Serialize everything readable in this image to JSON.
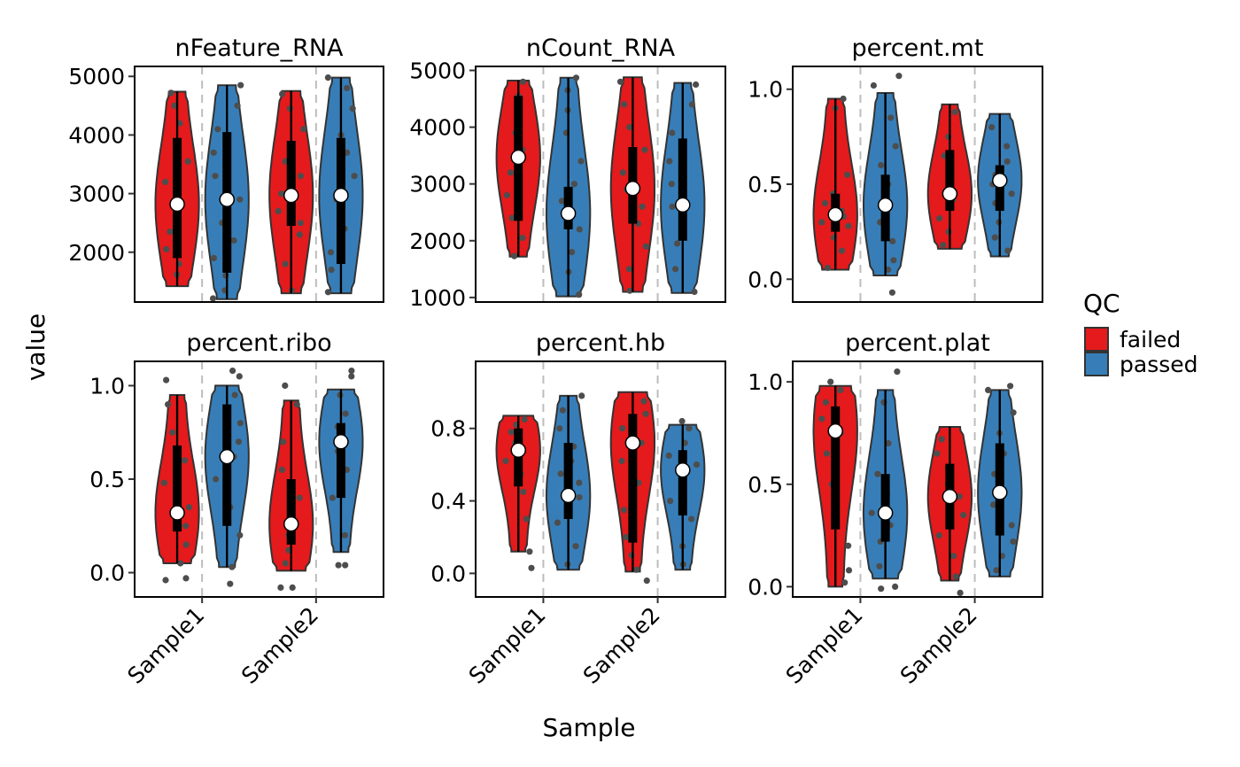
{
  "chart_data": {
    "type": "violin",
    "xlabel": "Sample",
    "ylabel": "value",
    "categories": [
      "Sample1",
      "Sample2"
    ],
    "legend": {
      "title": "QC",
      "position": "right",
      "entries": [
        {
          "name": "failed",
          "color": "#e41a1c"
        },
        {
          "name": "passed",
          "color": "#377eb8"
        }
      ]
    },
    "grid": false,
    "panels": [
      {
        "title": "nFeature_RNA",
        "ylim": [
          1150,
          5170
        ],
        "yticks": [
          2000,
          3000,
          4000,
          5000
        ],
        "groups": [
          {
            "sample": "Sample1",
            "qc": "failed",
            "min": 1420,
            "max": 4740,
            "q1": 1900,
            "q3": 3950,
            "median": 2820,
            "points": [
              1620,
              1800,
              2050,
              2350,
              2600,
              2800,
              3200,
              3550,
              4200,
              4500,
              4720
            ]
          },
          {
            "sample": "Sample1",
            "qc": "passed",
            "min": 1200,
            "max": 4850,
            "q1": 1650,
            "q3": 4050,
            "median": 2900,
            "points": [
              1210,
              1350,
              1600,
              1900,
              2200,
              2500,
              2900,
              3300,
              3700,
              4100,
              4500,
              4850
            ]
          },
          {
            "sample": "Sample2",
            "qc": "failed",
            "min": 1300,
            "max": 4750,
            "q1": 2450,
            "q3": 3900,
            "median": 2970,
            "points": [
              1350,
              1800,
              2300,
              2500,
              2700,
              3000,
              3300,
              3550,
              3800,
              4100,
              4450,
              4700
            ]
          },
          {
            "sample": "Sample2",
            "qc": "passed",
            "min": 1300,
            "max": 4980,
            "q1": 1800,
            "q3": 3950,
            "median": 2970,
            "points": [
              1320,
              1700,
              2000,
              2400,
              2900,
              3300,
              3700,
              4000,
              4450,
              4800,
              4980
            ]
          }
        ]
      },
      {
        "title": "nCount_RNA",
        "ylim": [
          920,
          5070
        ],
        "yticks": [
          1000,
          2000,
          3000,
          4000,
          5000
        ],
        "groups": [
          {
            "sample": "Sample1",
            "qc": "failed",
            "min": 1720,
            "max": 4820,
            "q1": 2350,
            "q3": 4550,
            "median": 3470,
            "points": [
              1730,
              2050,
              2400,
              2800,
              3200,
              3600,
              3900,
              4200,
              4550,
              4800
            ]
          },
          {
            "sample": "Sample1",
            "qc": "passed",
            "min": 1020,
            "max": 4870,
            "q1": 2200,
            "q3": 2950,
            "median": 2480,
            "points": [
              1050,
              1450,
              1800,
              2200,
              2350,
              2500,
              2700,
              3000,
              3400,
              3900,
              4300,
              4650,
              4870
            ]
          },
          {
            "sample": "Sample2",
            "qc": "failed",
            "min": 1100,
            "max": 4880,
            "q1": 2300,
            "q3": 3650,
            "median": 2920,
            "points": [
              1120,
              1500,
              1900,
              2300,
              2600,
              2900,
              3200,
              3600,
              4000,
              4400,
              4800
            ]
          },
          {
            "sample": "Sample2",
            "qc": "passed",
            "min": 1080,
            "max": 4780,
            "q1": 2000,
            "q3": 3800,
            "median": 2630,
            "points": [
              1100,
              1500,
              1950,
              2300,
              2600,
              3000,
              3400,
              3900,
              4400,
              4750
            ]
          }
        ]
      },
      {
        "title": "percent.mt",
        "ylim": [
          -0.12,
          1.12
        ],
        "yticks": [
          0.0,
          0.5,
          1.0
        ],
        "yticklabels": [
          "0.0",
          "0.5",
          "1.0"
        ],
        "groups": [
          {
            "sample": "Sample1",
            "qc": "failed",
            "min": 0.05,
            "max": 0.95,
            "q1": 0.25,
            "q3": 0.45,
            "median": 0.34,
            "points": [
              0.06,
              0.15,
              0.22,
              0.28,
              0.3,
              0.33,
              0.36,
              0.4,
              0.45,
              0.55,
              0.9,
              0.95
            ]
          },
          {
            "sample": "Sample1",
            "qc": "passed",
            "min": 0.02,
            "max": 0.98,
            "q1": 0.2,
            "q3": 0.55,
            "median": 0.39,
            "points": [
              -0.07,
              0.05,
              0.1,
              0.2,
              0.3,
              0.4,
              0.5,
              0.6,
              0.7,
              0.85,
              1.02,
              1.07
            ]
          },
          {
            "sample": "Sample2",
            "qc": "failed",
            "min": 0.16,
            "max": 0.92,
            "q1": 0.36,
            "q3": 0.68,
            "median": 0.45,
            "points": [
              0.18,
              0.25,
              0.32,
              0.38,
              0.42,
              0.45,
              0.5,
              0.58,
              0.65,
              0.75,
              0.88
            ]
          },
          {
            "sample": "Sample2",
            "qc": "passed",
            "min": 0.12,
            "max": 0.87,
            "q1": 0.36,
            "q3": 0.6,
            "median": 0.52,
            "points": [
              0.15,
              0.22,
              0.3,
              0.4,
              0.45,
              0.5,
              0.55,
              0.62,
              0.7,
              0.8
            ]
          }
        ]
      },
      {
        "title": "percent.ribo",
        "ylim": [
          -0.13,
          1.13
        ],
        "yticks": [
          0.0,
          0.5,
          1.0
        ],
        "yticklabels": [
          "0.0",
          "0.5",
          "1.0"
        ],
        "groups": [
          {
            "sample": "Sample1",
            "qc": "failed",
            "min": 0.05,
            "max": 0.95,
            "q1": 0.22,
            "q3": 0.68,
            "median": 0.32,
            "points": [
              -0.04,
              -0.03,
              0.05,
              0.15,
              0.25,
              0.35,
              0.48,
              0.6,
              0.75,
              0.9,
              1.03
            ]
          },
          {
            "sample": "Sample1",
            "qc": "passed",
            "min": 0.03,
            "max": 1.0,
            "q1": 0.25,
            "q3": 0.9,
            "median": 0.62,
            "points": [
              -0.06,
              0.03,
              0.2,
              0.35,
              0.5,
              0.62,
              0.7,
              0.8,
              0.95,
              1.05,
              1.08
            ]
          },
          {
            "sample": "Sample2",
            "qc": "failed",
            "min": 0.01,
            "max": 0.92,
            "q1": 0.15,
            "q3": 0.5,
            "median": 0.26,
            "points": [
              -0.08,
              -0.08,
              0.05,
              0.12,
              0.2,
              0.3,
              0.4,
              0.55,
              0.7,
              0.9,
              1.0
            ]
          },
          {
            "sample": "Sample2",
            "qc": "passed",
            "min": 0.11,
            "max": 0.98,
            "q1": 0.4,
            "q3": 0.8,
            "median": 0.7,
            "points": [
              0.04,
              0.04,
              0.2,
              0.4,
              0.55,
              0.65,
              0.7,
              0.78,
              0.85,
              0.95,
              1.05,
              1.08
            ]
          }
        ]
      },
      {
        "title": "percent.hb",
        "ylim": [
          -0.13,
          1.17
        ],
        "yticks": [
          0.0,
          0.4,
          0.8
        ],
        "yticklabels": [
          "0.0",
          "0.4",
          "0.8"
        ],
        "groups": [
          {
            "sample": "Sample1",
            "qc": "failed",
            "min": 0.12,
            "max": 0.87,
            "q1": 0.48,
            "q3": 0.8,
            "median": 0.68,
            "points": [
              0.03,
              0.12,
              0.3,
              0.45,
              0.55,
              0.62,
              0.68,
              0.72,
              0.78,
              0.82,
              0.85
            ]
          },
          {
            "sample": "Sample1",
            "qc": "passed",
            "min": 0.02,
            "max": 0.98,
            "q1": 0.3,
            "q3": 0.72,
            "median": 0.43,
            "points": [
              0.05,
              0.15,
              0.28,
              0.35,
              0.42,
              0.5,
              0.55,
              0.62,
              0.7,
              0.8,
              0.9,
              0.98
            ]
          },
          {
            "sample": "Sample2",
            "qc": "failed",
            "min": 0.01,
            "max": 1.0,
            "q1": 0.17,
            "q3": 0.88,
            "median": 0.72,
            "points": [
              -0.04,
              0.02,
              0.1,
              0.2,
              0.35,
              0.5,
              0.62,
              0.72,
              0.8,
              0.88,
              0.95
            ]
          },
          {
            "sample": "Sample2",
            "qc": "passed",
            "min": 0.02,
            "max": 0.82,
            "q1": 0.32,
            "q3": 0.68,
            "median": 0.57,
            "points": [
              0.05,
              0.15,
              0.3,
              0.4,
              0.5,
              0.55,
              0.6,
              0.65,
              0.72,
              0.8,
              0.84
            ]
          }
        ]
      },
      {
        "title": "percent.plat",
        "ylim": [
          -0.05,
          1.1
        ],
        "yticks": [
          0.0,
          0.5,
          1.0
        ],
        "yticklabels": [
          "0.0",
          "0.5",
          "1.0"
        ],
        "groups": [
          {
            "sample": "Sample1",
            "qc": "failed",
            "min": 0.0,
            "max": 0.98,
            "q1": 0.28,
            "q3": 0.88,
            "median": 0.76,
            "points": [
              0.02,
              0.08,
              0.2,
              0.35,
              0.5,
              0.65,
              0.75,
              0.82,
              0.9,
              0.96,
              1.0
            ]
          },
          {
            "sample": "Sample1",
            "qc": "passed",
            "min": 0.04,
            "max": 0.96,
            "q1": 0.22,
            "q3": 0.55,
            "median": 0.36,
            "points": [
              -0.01,
              0.0,
              0.1,
              0.22,
              0.3,
              0.36,
              0.45,
              0.55,
              0.7,
              0.9,
              1.05
            ]
          },
          {
            "sample": "Sample2",
            "qc": "failed",
            "min": 0.03,
            "max": 0.78,
            "q1": 0.28,
            "q3": 0.6,
            "median": 0.44,
            "points": [
              -0.03,
              0.05,
              0.15,
              0.25,
              0.35,
              0.44,
              0.5,
              0.58,
              0.65,
              0.72
            ]
          },
          {
            "sample": "Sample2",
            "qc": "passed",
            "min": 0.05,
            "max": 0.96,
            "q1": 0.25,
            "q3": 0.7,
            "median": 0.46,
            "points": [
              0.08,
              0.15,
              0.22,
              0.3,
              0.4,
              0.46,
              0.55,
              0.65,
              0.75,
              0.85,
              0.96,
              0.98
            ]
          }
        ]
      }
    ]
  }
}
